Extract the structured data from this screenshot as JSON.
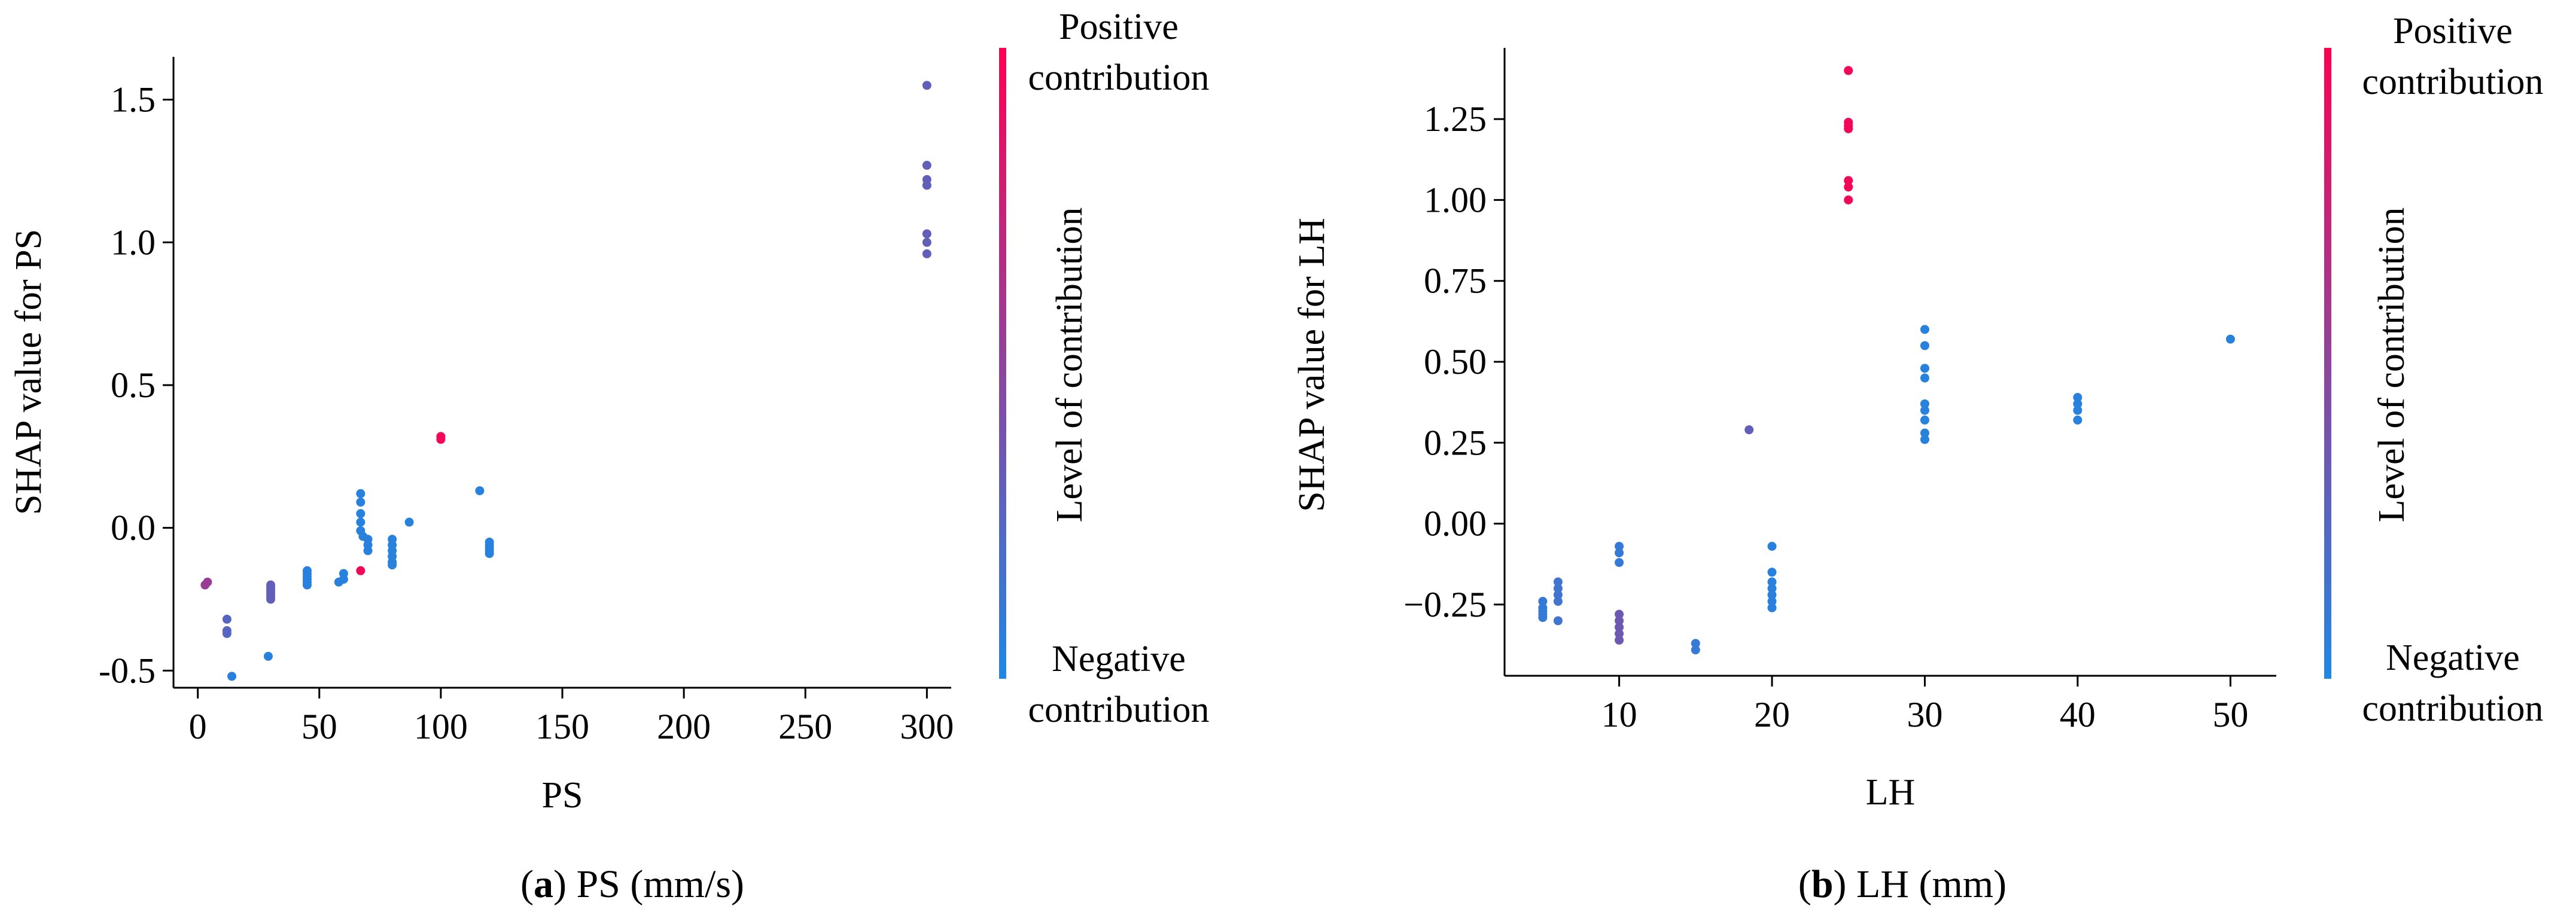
{
  "colorbar": {
    "colors": {
      "low": "#1e88e5",
      "high": "#ff0052"
    },
    "top_label": [
      "Positive",
      "contribution"
    ],
    "mid_label": "Level of contribution",
    "bottom_label": [
      "Negative",
      "contribution"
    ]
  },
  "chart_data": [
    {
      "type": "scatter",
      "caption": {
        "letter": "a",
        "text": "PS (mm/s)"
      },
      "xlabel": "PS",
      "ylabel": "SHAP value for PS",
      "xlim": [
        -10,
        310
      ],
      "ylim": [
        -0.56,
        1.65
      ],
      "xticks": [
        0,
        50,
        100,
        150,
        200,
        250,
        300
      ],
      "yticks": [
        -0.5,
        0.0,
        0.5,
        1.0,
        1.5
      ],
      "ytick_labels": [
        "-0.5",
        "0.0",
        "0.5",
        "1.0",
        "1.5"
      ],
      "points": [
        {
          "x": 3,
          "y": -0.2,
          "c": 0.55
        },
        {
          "x": 4,
          "y": -0.19,
          "c": 0.55
        },
        {
          "x": 12,
          "y": -0.32,
          "c": 0.25
        },
        {
          "x": 12,
          "y": -0.36,
          "c": 0.25
        },
        {
          "x": 12,
          "y": -0.37,
          "c": 0.25
        },
        {
          "x": 14,
          "y": -0.52,
          "c": 0.05
        },
        {
          "x": 29,
          "y": -0.45,
          "c": 0.05
        },
        {
          "x": 30,
          "y": -0.2,
          "c": 0.3
        },
        {
          "x": 30,
          "y": -0.21,
          "c": 0.3
        },
        {
          "x": 30,
          "y": -0.22,
          "c": 0.3
        },
        {
          "x": 30,
          "y": -0.23,
          "c": 0.3
        },
        {
          "x": 30,
          "y": -0.24,
          "c": 0.3
        },
        {
          "x": 30,
          "y": -0.25,
          "c": 0.3
        },
        {
          "x": 45,
          "y": -0.15,
          "c": 0.05
        },
        {
          "x": 45,
          "y": -0.16,
          "c": 0.05
        },
        {
          "x": 45,
          "y": -0.17,
          "c": 0.05
        },
        {
          "x": 45,
          "y": -0.18,
          "c": 0.05
        },
        {
          "x": 45,
          "y": -0.19,
          "c": 0.05
        },
        {
          "x": 45,
          "y": -0.2,
          "c": 0.05
        },
        {
          "x": 58,
          "y": -0.19,
          "c": 0.05
        },
        {
          "x": 60,
          "y": -0.16,
          "c": 0.05
        },
        {
          "x": 60,
          "y": -0.18,
          "c": 0.05
        },
        {
          "x": 67,
          "y": -0.15,
          "c": 0.95
        },
        {
          "x": 67,
          "y": 0.12,
          "c": 0.05
        },
        {
          "x": 67,
          "y": 0.09,
          "c": 0.05
        },
        {
          "x": 67,
          "y": 0.05,
          "c": 0.05
        },
        {
          "x": 67,
          "y": 0.02,
          "c": 0.05
        },
        {
          "x": 67,
          "y": -0.01,
          "c": 0.05
        },
        {
          "x": 68,
          "y": -0.03,
          "c": 0.05
        },
        {
          "x": 70,
          "y": -0.04,
          "c": 0.05
        },
        {
          "x": 70,
          "y": -0.06,
          "c": 0.05
        },
        {
          "x": 70,
          "y": -0.08,
          "c": 0.05
        },
        {
          "x": 80,
          "y": -0.04,
          "c": 0.05
        },
        {
          "x": 80,
          "y": -0.06,
          "c": 0.05
        },
        {
          "x": 80,
          "y": -0.08,
          "c": 0.05
        },
        {
          "x": 80,
          "y": -0.1,
          "c": 0.05
        },
        {
          "x": 80,
          "y": -0.12,
          "c": 0.05
        },
        {
          "x": 80,
          "y": -0.13,
          "c": 0.05
        },
        {
          "x": 87,
          "y": 0.02,
          "c": 0.05
        },
        {
          "x": 100,
          "y": 0.31,
          "c": 0.95
        },
        {
          "x": 100,
          "y": 0.32,
          "c": 0.95
        },
        {
          "x": 116,
          "y": 0.13,
          "c": 0.05
        },
        {
          "x": 120,
          "y": -0.05,
          "c": 0.05
        },
        {
          "x": 120,
          "y": -0.06,
          "c": 0.05
        },
        {
          "x": 120,
          "y": -0.07,
          "c": 0.05
        },
        {
          "x": 120,
          "y": -0.08,
          "c": 0.05
        },
        {
          "x": 120,
          "y": -0.09,
          "c": 0.05
        },
        {
          "x": 300,
          "y": 1.55,
          "c": 0.3
        },
        {
          "x": 300,
          "y": 1.27,
          "c": 0.3
        },
        {
          "x": 300,
          "y": 1.22,
          "c": 0.3
        },
        {
          "x": 300,
          "y": 1.2,
          "c": 0.3
        },
        {
          "x": 300,
          "y": 1.03,
          "c": 0.3
        },
        {
          "x": 300,
          "y": 1.0,
          "c": 0.3
        },
        {
          "x": 300,
          "y": 0.96,
          "c": 0.3
        }
      ]
    },
    {
      "type": "scatter",
      "caption": {
        "letter": "b",
        "text": "LH (mm)"
      },
      "xlabel": "LH",
      "ylabel": "SHAP value for LH",
      "xlim": [
        2.5,
        53
      ],
      "ylim": [
        -0.47,
        1.47
      ],
      "xticks": [
        10,
        20,
        30,
        40,
        50
      ],
      "yticks": [
        -0.25,
        0.0,
        0.25,
        0.5,
        0.75,
        1.0,
        1.25
      ],
      "ytick_labels": [
        "−0.25",
        "0.00",
        "0.25",
        "0.50",
        "0.75",
        "1.00",
        "1.25"
      ],
      "points": [
        {
          "x": 5,
          "y": -0.24,
          "c": 0.1
        },
        {
          "x": 5,
          "y": -0.26,
          "c": 0.1
        },
        {
          "x": 5,
          "y": -0.27,
          "c": 0.1
        },
        {
          "x": 5,
          "y": -0.28,
          "c": 0.1
        },
        {
          "x": 5,
          "y": -0.29,
          "c": 0.1
        },
        {
          "x": 6,
          "y": -0.18,
          "c": 0.15
        },
        {
          "x": 6,
          "y": -0.2,
          "c": 0.15
        },
        {
          "x": 6,
          "y": -0.22,
          "c": 0.15
        },
        {
          "x": 6,
          "y": -0.24,
          "c": 0.15
        },
        {
          "x": 6,
          "y": -0.3,
          "c": 0.15
        },
        {
          "x": 10,
          "y": -0.07,
          "c": 0.1
        },
        {
          "x": 10,
          "y": -0.09,
          "c": 0.1
        },
        {
          "x": 10,
          "y": -0.12,
          "c": 0.1
        },
        {
          "x": 10,
          "y": -0.28,
          "c": 0.35
        },
        {
          "x": 10,
          "y": -0.3,
          "c": 0.35
        },
        {
          "x": 10,
          "y": -0.32,
          "c": 0.35
        },
        {
          "x": 10,
          "y": -0.34,
          "c": 0.35
        },
        {
          "x": 10,
          "y": -0.36,
          "c": 0.35
        },
        {
          "x": 15,
          "y": -0.37,
          "c": 0.1
        },
        {
          "x": 15,
          "y": -0.39,
          "c": 0.1
        },
        {
          "x": 18.5,
          "y": 0.29,
          "c": 0.3
        },
        {
          "x": 20,
          "y": -0.07,
          "c": 0.05
        },
        {
          "x": 20,
          "y": -0.15,
          "c": 0.05
        },
        {
          "x": 20,
          "y": -0.18,
          "c": 0.05
        },
        {
          "x": 20,
          "y": -0.2,
          "c": 0.05
        },
        {
          "x": 20,
          "y": -0.22,
          "c": 0.05
        },
        {
          "x": 20,
          "y": -0.24,
          "c": 0.05
        },
        {
          "x": 20,
          "y": -0.26,
          "c": 0.05
        },
        {
          "x": 25,
          "y": 1.4,
          "c": 0.95
        },
        {
          "x": 25,
          "y": 1.24,
          "c": 0.95
        },
        {
          "x": 25,
          "y": 1.23,
          "c": 0.95
        },
        {
          "x": 25,
          "y": 1.22,
          "c": 0.95
        },
        {
          "x": 25,
          "y": 1.06,
          "c": 0.95
        },
        {
          "x": 25,
          "y": 1.04,
          "c": 0.95
        },
        {
          "x": 25,
          "y": 1.0,
          "c": 0.95
        },
        {
          "x": 30,
          "y": 0.6,
          "c": 0.05
        },
        {
          "x": 30,
          "y": 0.55,
          "c": 0.05
        },
        {
          "x": 30,
          "y": 0.48,
          "c": 0.05
        },
        {
          "x": 30,
          "y": 0.45,
          "c": 0.05
        },
        {
          "x": 30,
          "y": 0.37,
          "c": 0.05
        },
        {
          "x": 30,
          "y": 0.35,
          "c": 0.05
        },
        {
          "x": 30,
          "y": 0.32,
          "c": 0.05
        },
        {
          "x": 30,
          "y": 0.28,
          "c": 0.05
        },
        {
          "x": 30,
          "y": 0.26,
          "c": 0.05
        },
        {
          "x": 40,
          "y": 0.39,
          "c": 0.05
        },
        {
          "x": 40,
          "y": 0.37,
          "c": 0.05
        },
        {
          "x": 40,
          "y": 0.35,
          "c": 0.05
        },
        {
          "x": 40,
          "y": 0.32,
          "c": 0.05
        },
        {
          "x": 50,
          "y": 0.57,
          "c": 0.05
        }
      ]
    }
  ]
}
